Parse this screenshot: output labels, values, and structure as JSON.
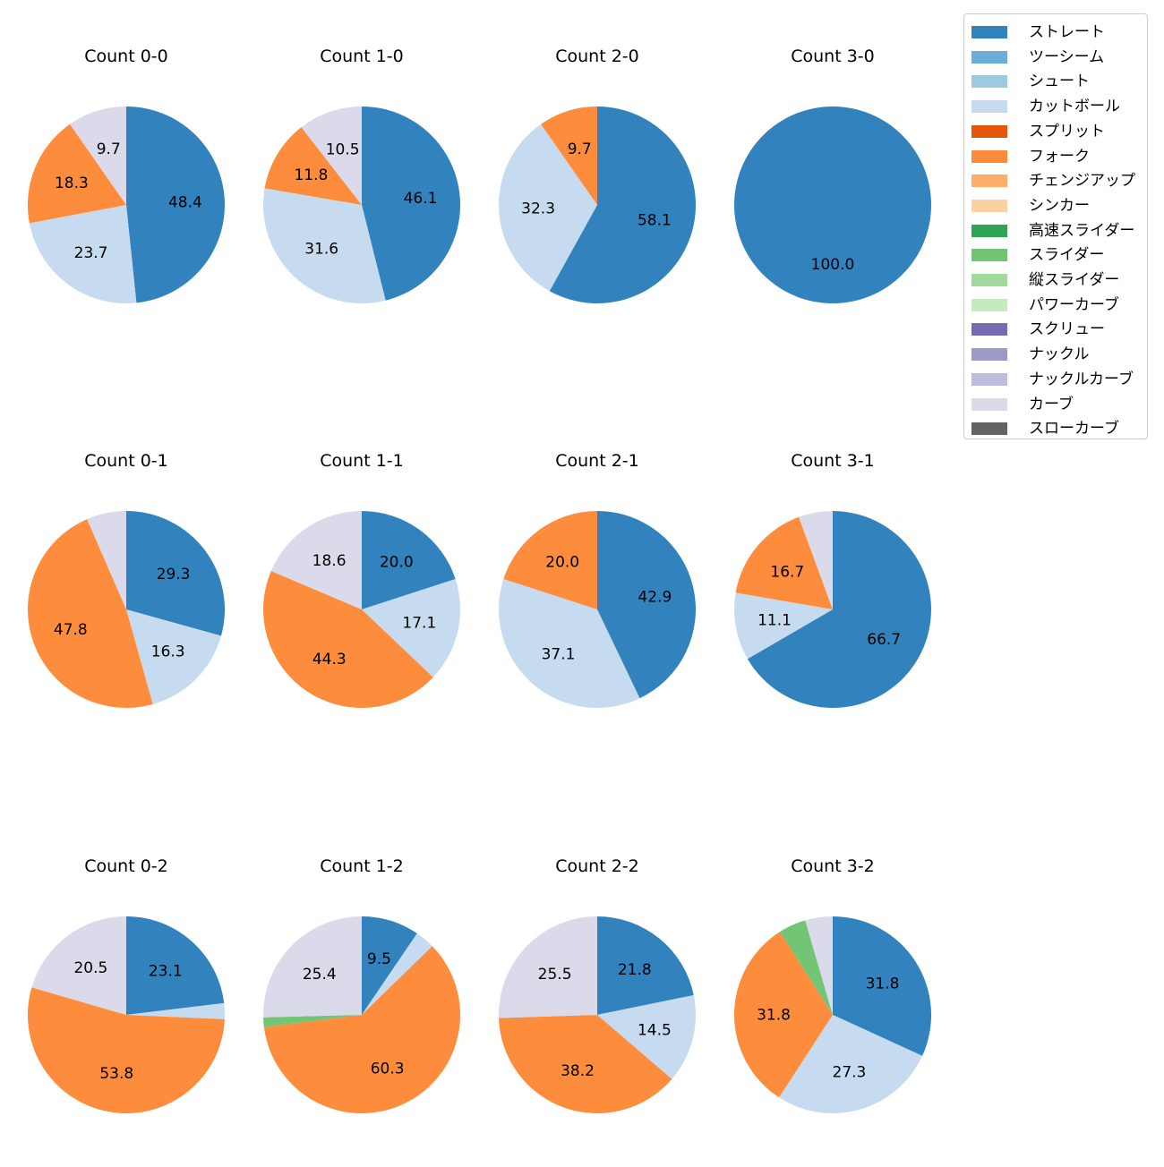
{
  "chart_data": {
    "type": "pie",
    "legend": {
      "placement": "top-right",
      "entries": [
        {
          "name": "ストレート",
          "color": "#3182bd"
        },
        {
          "name": "ツーシーム",
          "color": "#6baed6"
        },
        {
          "name": "シュート",
          "color": "#9ecae1"
        },
        {
          "name": "カットボール",
          "color": "#c6dbef"
        },
        {
          "name": "スプリット",
          "color": "#e6550d"
        },
        {
          "name": "フォーク",
          "color": "#fd8d3c"
        },
        {
          "name": "チェンジアップ",
          "color": "#fdae6b"
        },
        {
          "name": "シンカー",
          "color": "#fdd0a2"
        },
        {
          "name": "高速スライダー",
          "color": "#31a354"
        },
        {
          "name": "スライダー",
          "color": "#74c476"
        },
        {
          "name": "縦スライダー",
          "color": "#a1d99b"
        },
        {
          "name": "パワーカーブ",
          "color": "#c7e9c0"
        },
        {
          "name": "スクリュー",
          "color": "#756bb1"
        },
        {
          "name": "ナックル",
          "color": "#9e9ac8"
        },
        {
          "name": "ナックルカーブ",
          "color": "#bcbddc"
        },
        {
          "name": "カーブ",
          "color": "#dadaeb"
        },
        {
          "name": "スローカーブ",
          "color": "#636363"
        }
      ]
    },
    "pies": [
      {
        "title": "Count 0-0",
        "slices": [
          {
            "pitch": "ストレート",
            "value": 48.4,
            "label": "48.4"
          },
          {
            "pitch": "カットボール",
            "value": 23.7,
            "label": "23.7"
          },
          {
            "pitch": "フォーク",
            "value": 18.3,
            "label": "18.3"
          },
          {
            "pitch": "カーブ",
            "value": 9.7,
            "label": "9.7"
          }
        ]
      },
      {
        "title": "Count 1-0",
        "slices": [
          {
            "pitch": "ストレート",
            "value": 46.1,
            "label": "46.1"
          },
          {
            "pitch": "カットボール",
            "value": 31.6,
            "label": "31.6"
          },
          {
            "pitch": "フォーク",
            "value": 11.8,
            "label": "11.8"
          },
          {
            "pitch": "カーブ",
            "value": 10.5,
            "label": "10.5"
          }
        ]
      },
      {
        "title": "Count 2-0",
        "slices": [
          {
            "pitch": "ストレート",
            "value": 58.1,
            "label": "58.1"
          },
          {
            "pitch": "カットボール",
            "value": 32.3,
            "label": "32.3"
          },
          {
            "pitch": "フォーク",
            "value": 9.7,
            "label": "9.7"
          }
        ]
      },
      {
        "title": "Count 3-0",
        "slices": [
          {
            "pitch": "ストレート",
            "value": 100.0,
            "label": "100.0"
          }
        ]
      },
      {
        "title": "Count 0-1",
        "slices": [
          {
            "pitch": "ストレート",
            "value": 29.3,
            "label": "29.3"
          },
          {
            "pitch": "カットボール",
            "value": 16.3,
            "label": "16.3"
          },
          {
            "pitch": "フォーク",
            "value": 47.8,
            "label": "47.8"
          },
          {
            "pitch": "カーブ",
            "value": 6.5,
            "label": ""
          }
        ]
      },
      {
        "title": "Count 1-1",
        "slices": [
          {
            "pitch": "ストレート",
            "value": 20.0,
            "label": "20.0"
          },
          {
            "pitch": "カットボール",
            "value": 17.1,
            "label": "17.1"
          },
          {
            "pitch": "フォーク",
            "value": 44.3,
            "label": "44.3"
          },
          {
            "pitch": "カーブ",
            "value": 18.6,
            "label": "18.6"
          }
        ]
      },
      {
        "title": "Count 2-1",
        "slices": [
          {
            "pitch": "ストレート",
            "value": 42.9,
            "label": "42.9"
          },
          {
            "pitch": "カットボール",
            "value": 37.1,
            "label": "37.1"
          },
          {
            "pitch": "フォーク",
            "value": 20.0,
            "label": "20.0"
          }
        ]
      },
      {
        "title": "Count 3-1",
        "slices": [
          {
            "pitch": "ストレート",
            "value": 66.7,
            "label": "66.7"
          },
          {
            "pitch": "カットボール",
            "value": 11.1,
            "label": "11.1"
          },
          {
            "pitch": "フォーク",
            "value": 16.7,
            "label": "16.7"
          },
          {
            "pitch": "カーブ",
            "value": 5.6,
            "label": ""
          }
        ]
      },
      {
        "title": "Count 0-2",
        "slices": [
          {
            "pitch": "ストレート",
            "value": 23.1,
            "label": "23.1"
          },
          {
            "pitch": "カットボール",
            "value": 2.6,
            "label": ""
          },
          {
            "pitch": "フォーク",
            "value": 53.8,
            "label": "53.8"
          },
          {
            "pitch": "カーブ",
            "value": 20.5,
            "label": "20.5"
          }
        ]
      },
      {
        "title": "Count 1-2",
        "slices": [
          {
            "pitch": "ストレート",
            "value": 9.5,
            "label": "9.5"
          },
          {
            "pitch": "カットボール",
            "value": 3.2,
            "label": ""
          },
          {
            "pitch": "フォーク",
            "value": 60.3,
            "label": "60.3"
          },
          {
            "pitch": "スライダー",
            "value": 1.6,
            "label": ""
          },
          {
            "pitch": "カーブ",
            "value": 25.4,
            "label": "25.4"
          }
        ]
      },
      {
        "title": "Count 2-2",
        "slices": [
          {
            "pitch": "ストレート",
            "value": 21.8,
            "label": "21.8"
          },
          {
            "pitch": "カットボール",
            "value": 14.5,
            "label": "14.5"
          },
          {
            "pitch": "フォーク",
            "value": 38.2,
            "label": "38.2"
          },
          {
            "pitch": "カーブ",
            "value": 25.5,
            "label": "25.5"
          }
        ]
      },
      {
        "title": "Count 3-2",
        "slices": [
          {
            "pitch": "ストレート",
            "value": 31.8,
            "label": "31.8"
          },
          {
            "pitch": "カットボール",
            "value": 27.3,
            "label": "27.3"
          },
          {
            "pitch": "フォーク",
            "value": 31.8,
            "label": "31.8"
          },
          {
            "pitch": "スライダー",
            "value": 4.5,
            "label": ""
          },
          {
            "pitch": "カーブ",
            "value": 4.5,
            "label": ""
          }
        ]
      }
    ]
  }
}
